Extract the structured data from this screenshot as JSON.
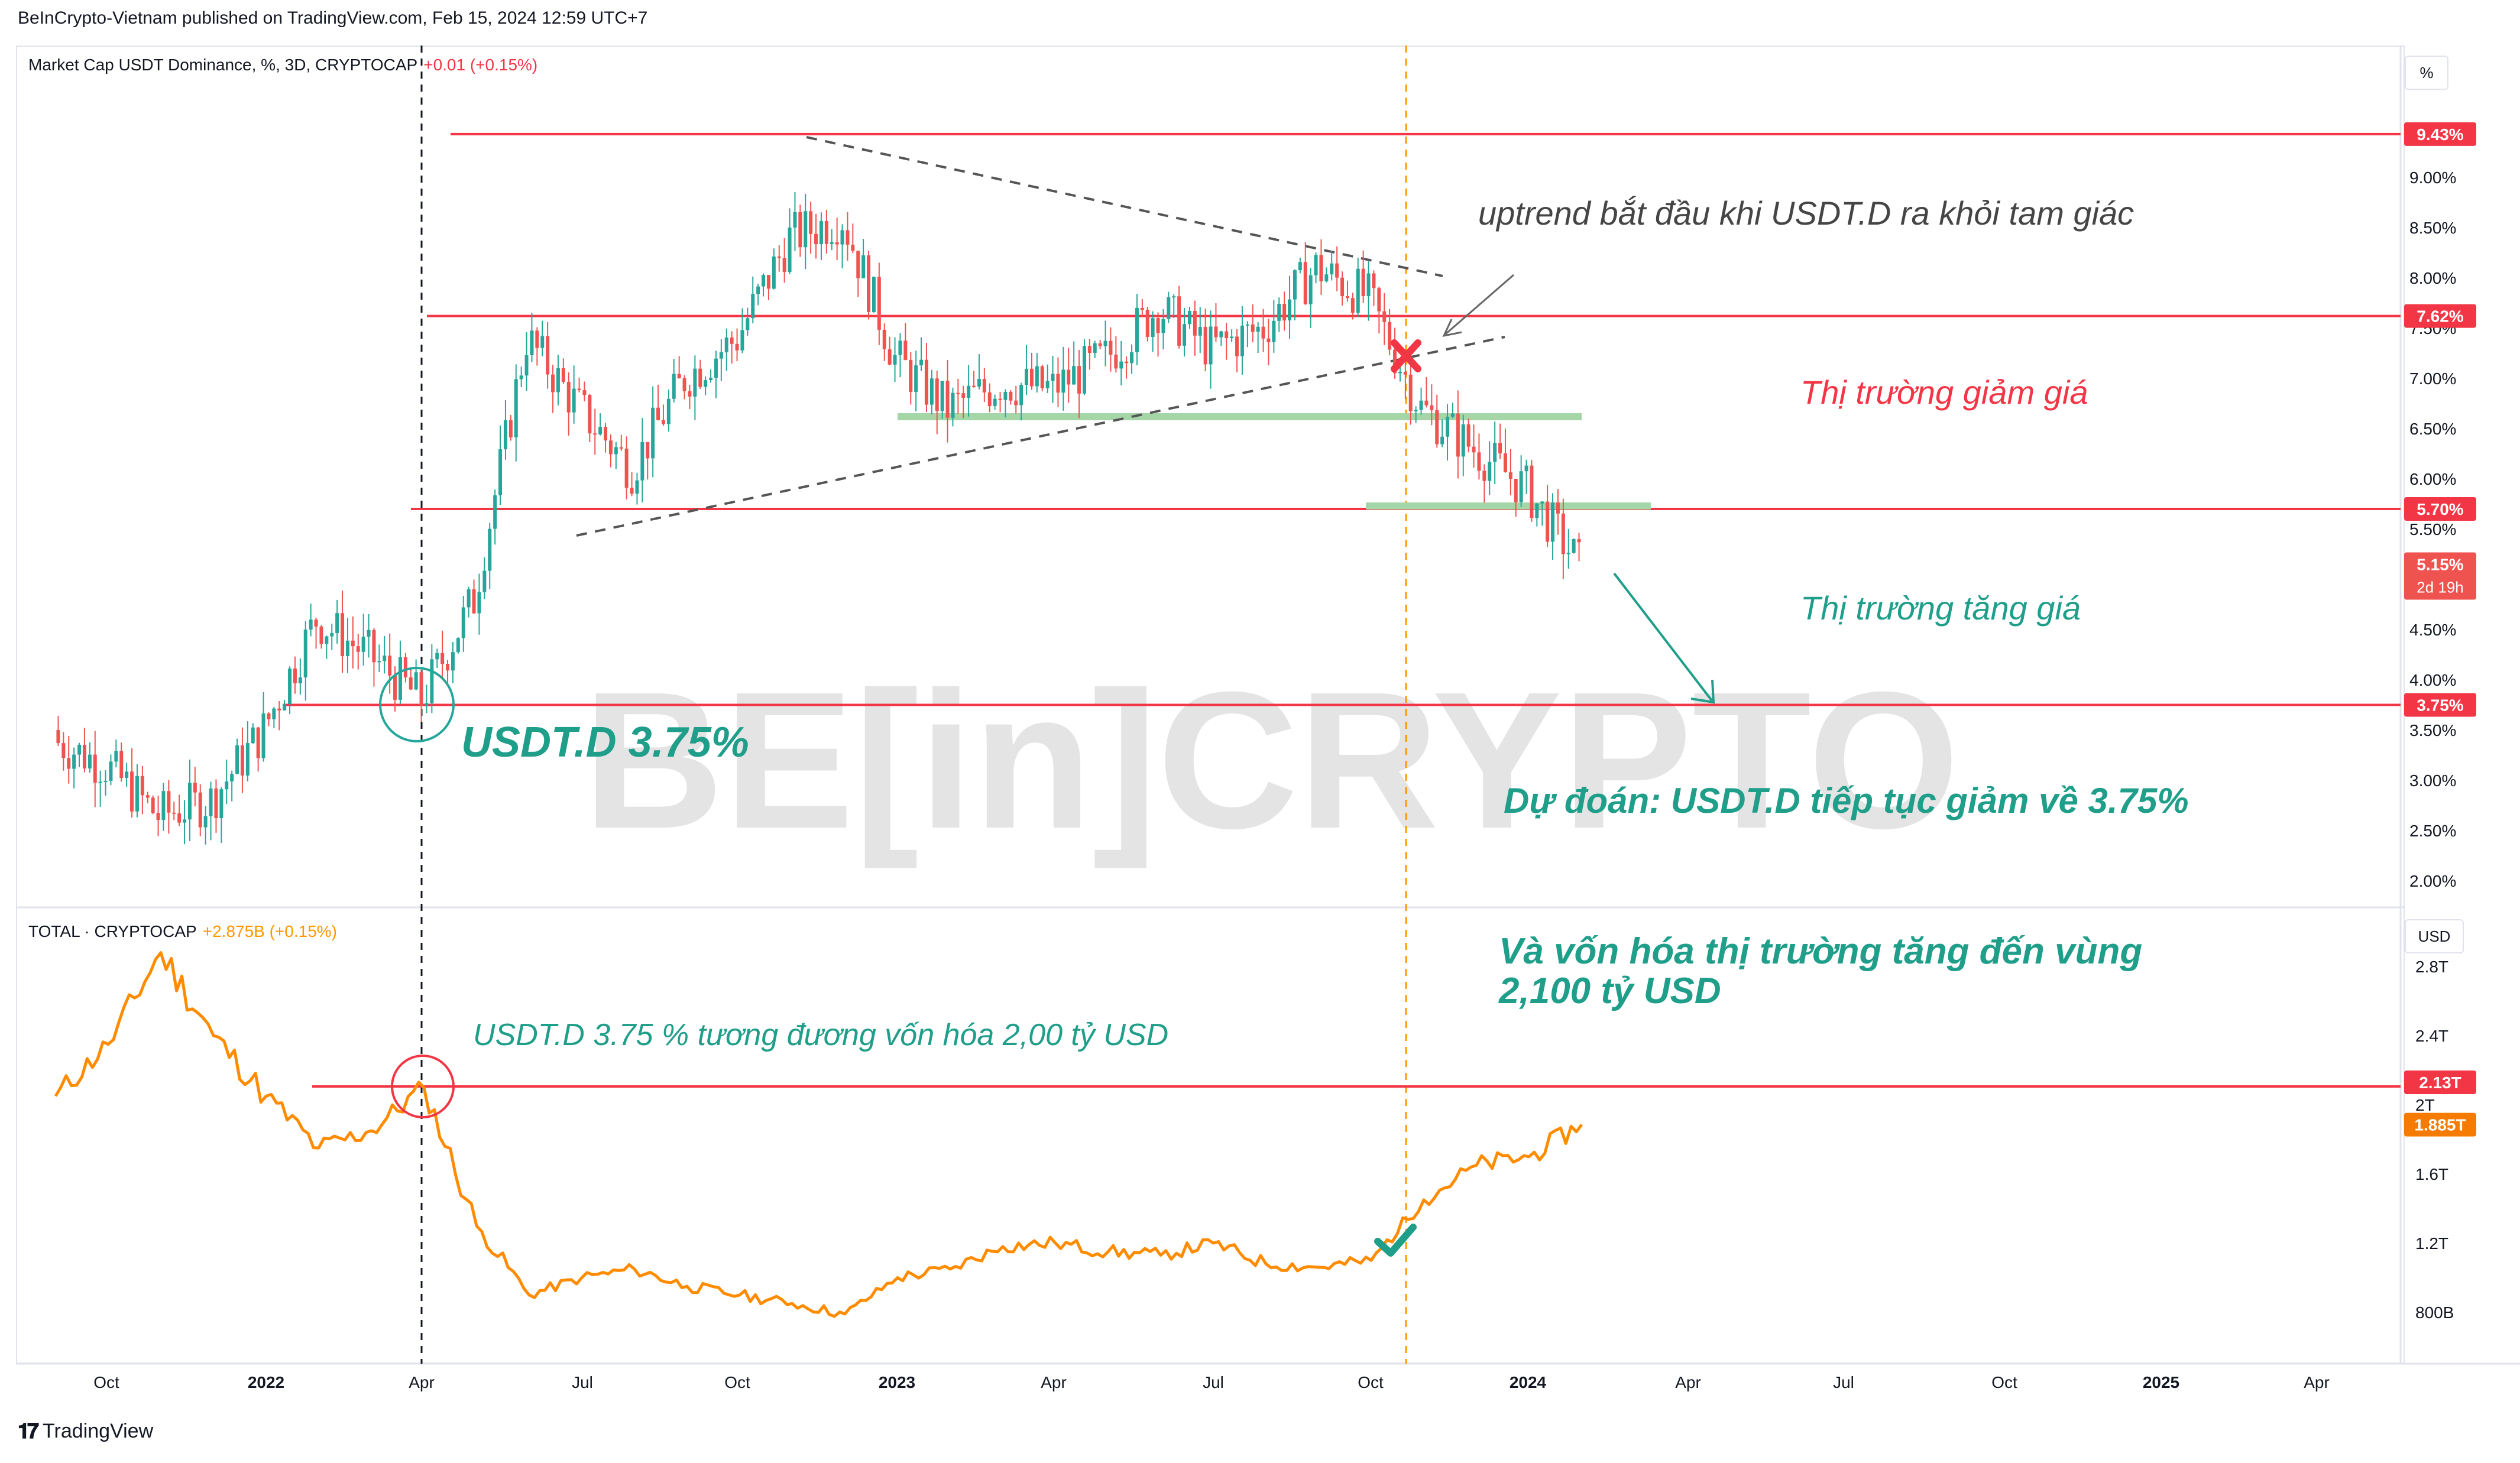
{
  "header": {
    "published": "BeInCrypto-Vietnam published on TradingView.com, Feb 15, 2024 12:59 UTC+7"
  },
  "footer": {
    "brand": "TradingView"
  },
  "watermark": "BE[in]CRYPTO",
  "top_pane": {
    "title": "Market Cap USDT Dominance, %, 3D, CRYPTOCAP",
    "change": "+0.01 (+0.15%)",
    "axis_unit": "%",
    "tick_labels": [
      "9.00%",
      "8.50%",
      "8.00%",
      "7.50%",
      "7.00%",
      "6.50%",
      "6.00%",
      "5.50%",
      "4.50%",
      "4.00%",
      "3.50%",
      "3.00%",
      "2.50%",
      "2.00%"
    ],
    "level_badges": [
      "9.43%",
      "7.62%",
      "5.70%",
      "3.75%"
    ],
    "price_badge": "5.15%",
    "countdown": "2d 19h",
    "annotations": {
      "uptrend": "uptrend bắt đầu khi USDT.D ra khỏi tam giác",
      "bear": "Thị trường giảm giá",
      "bull": "Thị trường tăng giá",
      "level": "USDT.D 3.75%",
      "forecast": "Dự đoán: USDT.D tiếp tục giảm về 3.75%"
    }
  },
  "bottom_pane": {
    "title": "TOTAL · CRYPTOCAP",
    "change": "+2.875B (+0.15%)",
    "axis_unit": "USD",
    "tick_labels": [
      "2.8T",
      "2.4T",
      "2T",
      "1.6T",
      "1.2T",
      "800B"
    ],
    "level_badge": "2.13T",
    "price_badge": "1.885T",
    "annotations": {
      "equivalence": "USDT.D 3.75 % tương đương vốn hóa 2,00 tỷ USD",
      "target_line1": "Và vốn hóa thị trường tăng đến vùng",
      "target_line2": "2,100 tỷ USD"
    }
  },
  "x_axis_labels": [
    "Oct",
    "2022",
    "Apr",
    "Jul",
    "Oct",
    "2023",
    "Apr",
    "Jul",
    "Oct",
    "2024",
    "Apr",
    "Jul",
    "Oct",
    "2025",
    "Apr"
  ],
  "colors": {
    "up": "#26a69a",
    "down": "#ef5350",
    "level": "#f23645",
    "total": "#ff8c00",
    "support": "#a5d6a7",
    "teal_text": "#1f9e8a",
    "red_text": "#f23645"
  },
  "chart_data": [
    {
      "type": "candlestick",
      "title": "Market Cap USDT Dominance, %, 3D, CRYPTOCAP",
      "ylabel": "%",
      "ylim": [
        1.8,
        9.6
      ],
      "levels": [
        9.43,
        7.62,
        5.7,
        3.75
      ],
      "last": 5.15,
      "x": [
        "2021-09",
        "2021-10",
        "2021-11",
        "2021-12",
        "2022-01",
        "2022-02",
        "2022-03",
        "2022-04",
        "2022-05",
        "2022-06",
        "2022-07",
        "2022-08",
        "2022-09",
        "2022-10",
        "2022-11",
        "2022-12",
        "2023-01",
        "2023-02",
        "2023-03",
        "2023-04",
        "2023-05",
        "2023-06",
        "2023-07",
        "2023-08",
        "2023-09",
        "2023-10",
        "2023-11",
        "2023-12",
        "2024-01",
        "2024-02"
      ],
      "close": [
        3.4,
        3.15,
        2.65,
        2.8,
        3.5,
        4.6,
        4.25,
        3.8,
        4.8,
        7.4,
        6.7,
        6.1,
        7.0,
        7.4,
        8.4,
        8.6,
        7.2,
        6.7,
        6.95,
        6.9,
        7.2,
        7.7,
        7.3,
        7.5,
        8.1,
        7.8,
        6.7,
        6.3,
        5.9,
        5.15
      ]
    },
    {
      "type": "line",
      "title": "TOTAL · CRYPTOCAP",
      "ylabel": "USD",
      "ylim": [
        700,
        3000
      ],
      "unit": "B",
      "levels": [
        2130
      ],
      "last": 1885,
      "x": [
        "2021-09",
        "2021-10",
        "2021-11",
        "2021-12",
        "2022-01",
        "2022-02",
        "2022-03",
        "2022-04",
        "2022-05",
        "2022-06",
        "2022-07",
        "2022-08",
        "2022-09",
        "2022-10",
        "2022-11",
        "2022-12",
        "2023-01",
        "2023-02",
        "2023-03",
        "2023-04",
        "2023-05",
        "2023-06",
        "2023-07",
        "2023-08",
        "2023-09",
        "2023-10",
        "2023-11",
        "2023-12",
        "2024-01",
        "2024-02"
      ],
      "values": [
        2050,
        2350,
        2880,
        2400,
        2050,
        1750,
        1850,
        2100,
        1300,
        900,
        1000,
        1050,
        950,
        900,
        850,
        790,
        1000,
        1050,
        1180,
        1200,
        1150,
        1130,
        1200,
        1080,
        1060,
        1100,
        1450,
        1650,
        1700,
        1885
      ]
    }
  ]
}
